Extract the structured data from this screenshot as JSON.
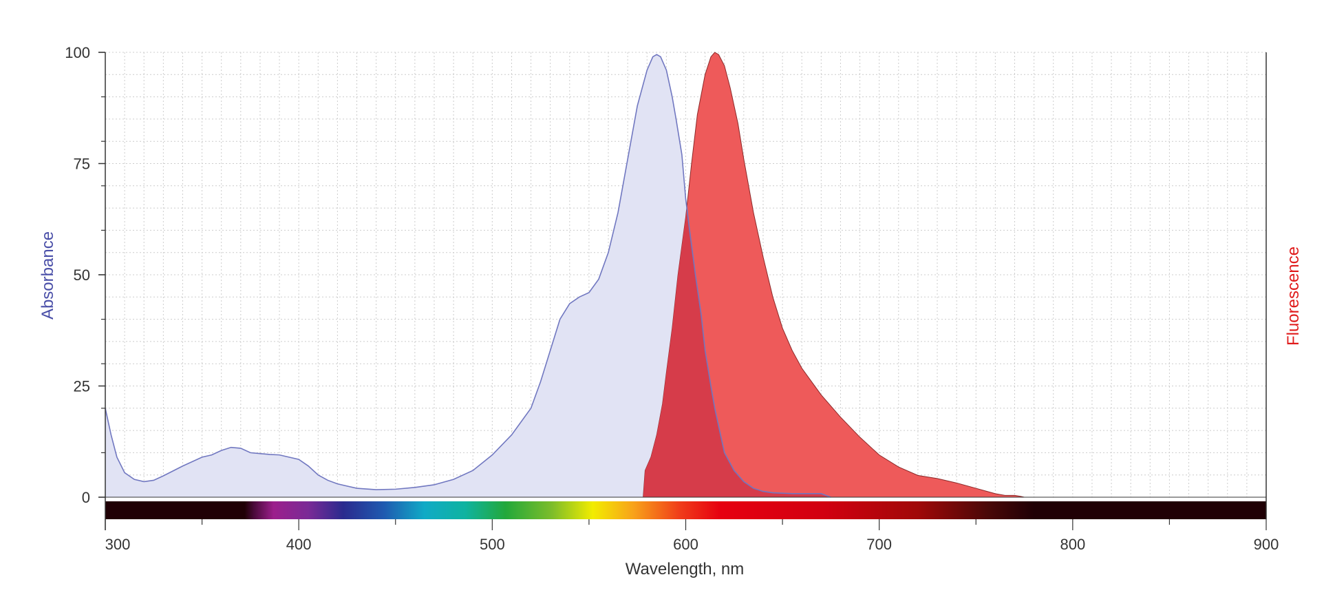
{
  "chart_data": {
    "type": "area",
    "title": "",
    "xlabel": "Wavelength, nm",
    "ylabel_left": "Absorbance",
    "ylabel_right": "Fluorescence",
    "xlim": [
      300,
      900
    ],
    "ylim": [
      0,
      100
    ],
    "x_ticks": [
      300,
      400,
      500,
      600,
      700,
      800,
      900
    ],
    "x_tick_labels": [
      "300",
      "400",
      "500",
      "600",
      "700",
      "800",
      "900"
    ],
    "y_ticks": [
      0,
      25,
      50,
      75,
      100
    ],
    "y_tick_labels": [
      "0",
      "25",
      "50",
      "75",
      "100"
    ],
    "grid": true,
    "colors": {
      "absorbance_fill": "#e1e3f4",
      "absorbance_line": "#7077c0",
      "absorbance_label": "#4a4fa8",
      "fluorescence_fill": "#ee5a5a",
      "fluorescence_line": "#8a2828",
      "fluorescence_label": "#e01b1b",
      "overlap_fill": "#d63c4a",
      "axis": "#333333"
    },
    "series": [
      {
        "name": "Absorbance",
        "x": [
          300,
          303,
          306,
          310,
          315,
          320,
          325,
          330,
          340,
          350,
          355,
          360,
          365,
          370,
          375,
          380,
          385,
          390,
          400,
          405,
          410,
          415,
          420,
          430,
          440,
          450,
          460,
          470,
          480,
          490,
          500,
          510,
          520,
          525,
          530,
          535,
          540,
          545,
          550,
          555,
          560,
          565,
          570,
          575,
          580,
          583,
          585,
          587,
          590,
          593,
          595,
          598,
          600,
          602,
          605,
          608,
          610,
          613,
          615,
          618,
          620,
          625,
          630,
          635,
          640,
          645,
          650,
          655,
          660,
          665,
          670,
          675
        ],
        "y": [
          20,
          14,
          9,
          5.5,
          4,
          3.5,
          3.8,
          4.8,
          7,
          9,
          9.5,
          10.5,
          11.2,
          11,
          10,
          9.8,
          9.6,
          9.5,
          8.5,
          7,
          5,
          3.8,
          3,
          2,
          1.7,
          1.8,
          2.2,
          2.8,
          4,
          6,
          9.5,
          14,
          20,
          26,
          33,
          40,
          43.5,
          45,
          46,
          49,
          55,
          64,
          76,
          88,
          96,
          99,
          99.5,
          99,
          96,
          90,
          85,
          77,
          67,
          60,
          50,
          41,
          33,
          25,
          20,
          14,
          10,
          6,
          3.5,
          2,
          1.3,
          1,
          0.9,
          0.8,
          0.8,
          0.8,
          0.8,
          0
        ]
      },
      {
        "name": "Fluorescence",
        "x": [
          578,
          579,
          582,
          585,
          588,
          590,
          593,
          596,
          600,
          603,
          606,
          610,
          613,
          615,
          617,
          620,
          623,
          627,
          630,
          635,
          640,
          645,
          650,
          655,
          660,
          665,
          670,
          680,
          690,
          700,
          710,
          720,
          730,
          740,
          750,
          755,
          760,
          765,
          770,
          773,
          775
        ],
        "y": [
          0,
          6,
          9,
          14,
          21,
          28,
          38,
          50,
          63,
          75,
          86,
          95,
          99,
          100,
          99.5,
          97,
          92,
          84,
          76,
          64,
          54,
          45,
          38,
          33,
          29,
          26,
          23,
          18,
          13.5,
          9.5,
          6.8,
          4.9,
          4.2,
          3.2,
          2,
          1.4,
          0.8,
          0.4,
          0.4,
          0.2,
          0
        ]
      }
    ]
  }
}
